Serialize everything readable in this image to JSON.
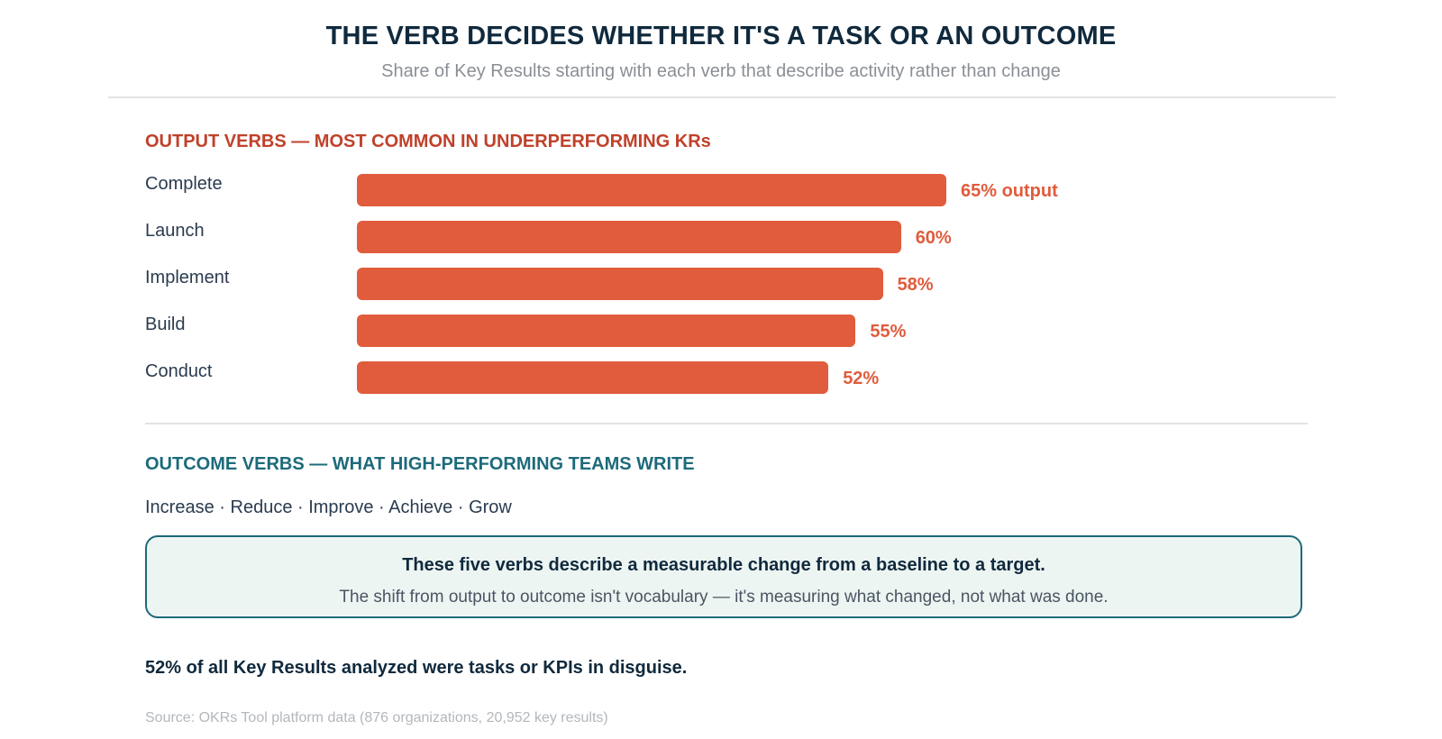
{
  "title": "THE VERB DECIDES WHETHER IT'S A TASK OR AN OUTCOME",
  "subtitle": "Share of Key Results starting with each verb that describe activity rather than change",
  "output_section": {
    "heading": "OUTPUT VERBS — MOST COMMON IN UNDERPERFORMING KRs"
  },
  "chart_data": {
    "type": "bar",
    "orientation": "horizontal",
    "categories": [
      "Complete",
      "Launch",
      "Implement",
      "Build",
      "Conduct"
    ],
    "values": [
      65,
      60,
      58,
      55,
      52
    ],
    "value_labels": [
      "65% output",
      "60%",
      "58%",
      "55%",
      "52%"
    ],
    "unit": "%",
    "xlim": [
      0,
      100
    ],
    "bar_color": "#e05c3c",
    "grid": false,
    "legend": "none"
  },
  "outcome_section": {
    "heading": "OUTCOME VERBS — WHAT HIGH-PERFORMING TEAMS WRITE",
    "verbs": [
      "Increase",
      "Reduce",
      "Improve",
      "Achieve",
      "Grow"
    ],
    "separator": "·"
  },
  "callout": {
    "headline": "These five verbs describe a measurable change from a baseline to a target.",
    "body": "The shift from output to outcome isn't vocabulary — it's measuring what changed, not what was done."
  },
  "stat_line": "52% of all Key Results analyzed were tasks or KPIs in disguise.",
  "source": "Source: OKRs Tool platform data (876 organizations, 20,952 key results)",
  "colors": {
    "output_accent": "#c0412a",
    "bar": "#e05c3c",
    "outcome_accent": "#1d6a7a",
    "callout_bg": "#edf5f2"
  }
}
